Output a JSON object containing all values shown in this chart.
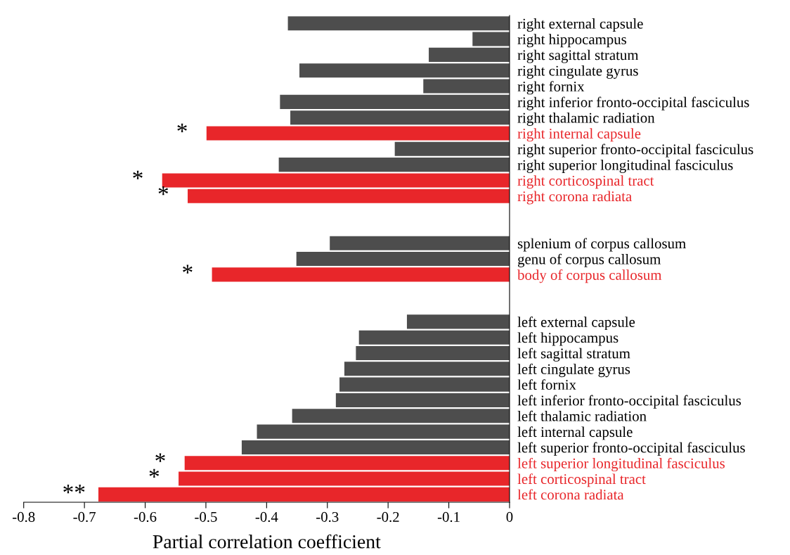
{
  "chart_data": {
    "type": "bar",
    "orientation": "horizontal",
    "xlabel": "Partial correlation coefficient",
    "categories": [
      "right external capsule",
      "right hippocampus",
      "right sagittal stratum",
      "right cingulate gyrus",
      "right fornix",
      "right inferior fronto-occipital fasciculus",
      "right thalamic radiation",
      "right internal capsule",
      "right superior fronto-occipital fasciculus",
      "right superior longitudinal fasciculus",
      "right corticospinal tract",
      "right corona radiata",
      null,
      null,
      "splenium of corpus callosum",
      "genu of corpus callosum",
      "body of corpus callosum",
      null,
      null,
      "left external capsule",
      "left hippocampus",
      "left sagittal stratum",
      "left cingulate gyrus",
      "left fornix",
      "left inferior fronto-occipital fasciculus",
      "left thalamic radiation",
      "left internal capsule",
      "left superior fronto-occipital fasciculus",
      "left superior longitudinal fasciculus",
      "left corticospinal tract",
      "left corona radiata"
    ],
    "values": [
      -0.365,
      -0.061,
      -0.133,
      -0.346,
      -0.142,
      -0.378,
      -0.361,
      -0.499,
      -0.189,
      -0.38,
      -0.572,
      -0.53,
      null,
      null,
      -0.296,
      -0.351,
      -0.49,
      null,
      null,
      -0.169,
      -0.248,
      -0.253,
      -0.272,
      -0.28,
      -0.286,
      -0.358,
      -0.416,
      -0.441,
      -0.535,
      -0.545,
      -0.677
    ],
    "colors": [
      "#4d4d4d",
      "#4d4d4d",
      "#4d4d4d",
      "#4d4d4d",
      "#4d4d4d",
      "#4d4d4d",
      "#4d4d4d",
      "#e8262a",
      "#4d4d4d",
      "#4d4d4d",
      "#e8262a",
      "#e8262a",
      null,
      null,
      "#4d4d4d",
      "#4d4d4d",
      "#e8262a",
      null,
      null,
      "#4d4d4d",
      "#4d4d4d",
      "#4d4d4d",
      "#4d4d4d",
      "#4d4d4d",
      "#4d4d4d",
      "#4d4d4d",
      "#4d4d4d",
      "#4d4d4d",
      "#e8262a",
      "#e8262a",
      "#e8262a"
    ],
    "xlim": [
      -0.8,
      0
    ],
    "xticks": [
      {
        "value": -0.8,
        "label": "-0.8"
      },
      {
        "value": -0.7,
        "label": "-0.7"
      },
      {
        "value": -0.6,
        "label": "-0.6"
      },
      {
        "value": -0.5,
        "label": "-0.5"
      },
      {
        "value": -0.4,
        "label": "-0.4"
      },
      {
        "value": -0.3,
        "label": "-0.3"
      },
      {
        "value": -0.2,
        "label": "-0.2"
      },
      {
        "value": -0.1,
        "label": "-0.1"
      },
      0
    ],
    "annotations": [
      {
        "text": "*",
        "x": -0.499,
        "y": "right internal capsule"
      },
      {
        "text": "*",
        "x": -0.572,
        "y": "right corticospinal tract"
      },
      {
        "text": "*",
        "x": -0.53,
        "y": "right corona radiata"
      },
      {
        "text": "*",
        "x": -0.49,
        "y": "body of corpus callosum"
      },
      {
        "text": "*",
        "x": -0.535,
        "y": "left superior longitudinal fasciculus"
      },
      {
        "text": "*",
        "x": -0.545,
        "y": "left corticospinal tract"
      },
      {
        "text": "**",
        "x": -0.677,
        "y": "left corona radiata"
      }
    ],
    "grid": false,
    "legend": false
  }
}
